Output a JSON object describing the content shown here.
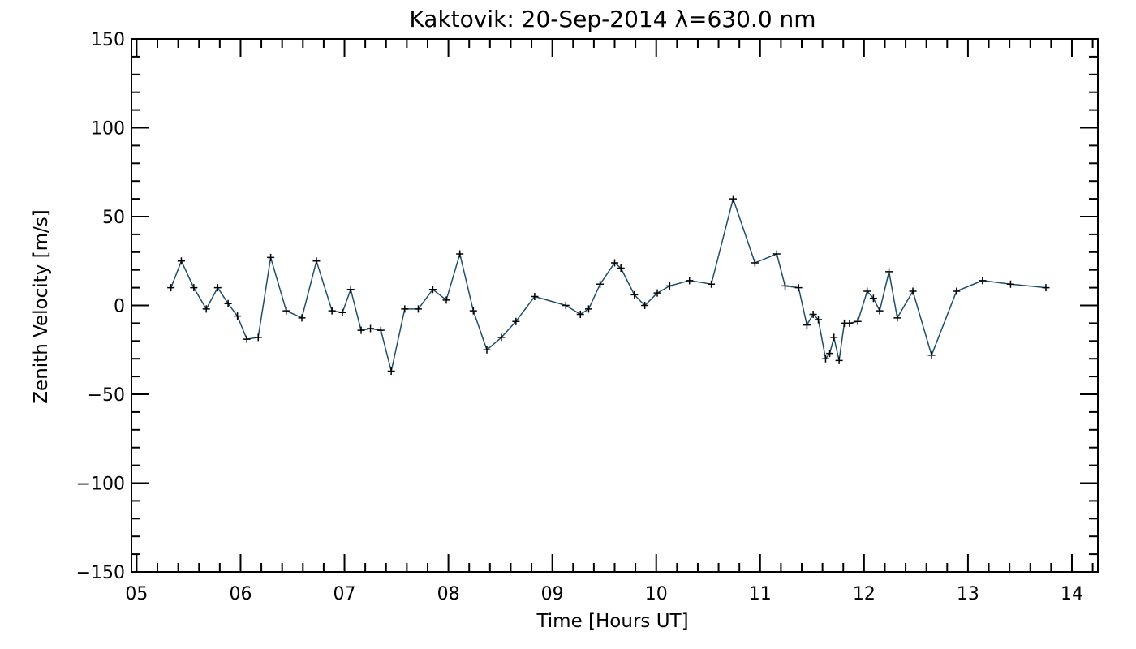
{
  "chart_data": {
    "type": "line",
    "title": "Kaktovik: 20-Sep-2014 λ=630.0 nm",
    "xlabel": "Time [Hours UT]",
    "ylabel": "Zenith Velocity [m/s]",
    "xlim": [
      4.95,
      14.25
    ],
    "ylim": [
      -150,
      150
    ],
    "x_ticks": [
      5,
      6,
      7,
      8,
      9,
      10,
      11,
      12,
      13,
      14
    ],
    "x_tick_labels": [
      "05",
      "06",
      "07",
      "08",
      "09",
      "10",
      "11",
      "12",
      "13",
      "14"
    ],
    "y_ticks": [
      -150,
      -100,
      -50,
      0,
      50,
      100,
      150
    ],
    "y_tick_labels": [
      "−150",
      "−100",
      "−50",
      "0",
      "50",
      "100",
      "150"
    ],
    "grid": false,
    "line_color": "#1f4e6b",
    "marker_color": "#000000",
    "marker": "plus",
    "series": [
      {
        "x": [
          5.33,
          5.43,
          5.55,
          5.67,
          5.78,
          5.88,
          5.97,
          6.06,
          6.17,
          6.29,
          6.44,
          6.59,
          6.73,
          6.88,
          6.98,
          7.06,
          7.16,
          7.25,
          7.35,
          7.45,
          7.58,
          7.71,
          7.85,
          7.98,
          8.11,
          8.24,
          8.37,
          8.51,
          8.65,
          8.83,
          9.13,
          9.27,
          9.35,
          9.46,
          9.6,
          9.66,
          9.79,
          9.89,
          10.01,
          10.13,
          10.32,
          10.53,
          10.74,
          10.95,
          11.16,
          11.24,
          11.37,
          11.45,
          11.51,
          11.56,
          11.63,
          11.67,
          11.71,
          11.76,
          11.81,
          11.86,
          11.94,
          12.03,
          12.09,
          12.15,
          12.24,
          12.32,
          12.47,
          12.65,
          12.89,
          13.14,
          13.41,
          13.75
        ],
        "y": [
          10,
          25,
          10,
          -2,
          10,
          1,
          -6,
          -19,
          -18,
          27,
          -3,
          -7,
          25,
          -3,
          -4,
          9,
          -14,
          -13,
          -14,
          -37,
          -2,
          -2,
          9,
          3,
          29,
          -3,
          -25,
          -18,
          -9,
          5,
          0,
          -5,
          -2,
          12,
          24,
          21,
          6,
          0,
          7,
          11,
          14,
          12,
          60,
          24,
          29,
          11,
          10,
          -11,
          -5,
          -8,
          -30,
          -27,
          -18,
          -31,
          -10,
          -10,
          -9,
          8,
          4,
          -3,
          19,
          -7,
          8,
          -28,
          8,
          14,
          12,
          10
        ]
      }
    ]
  }
}
